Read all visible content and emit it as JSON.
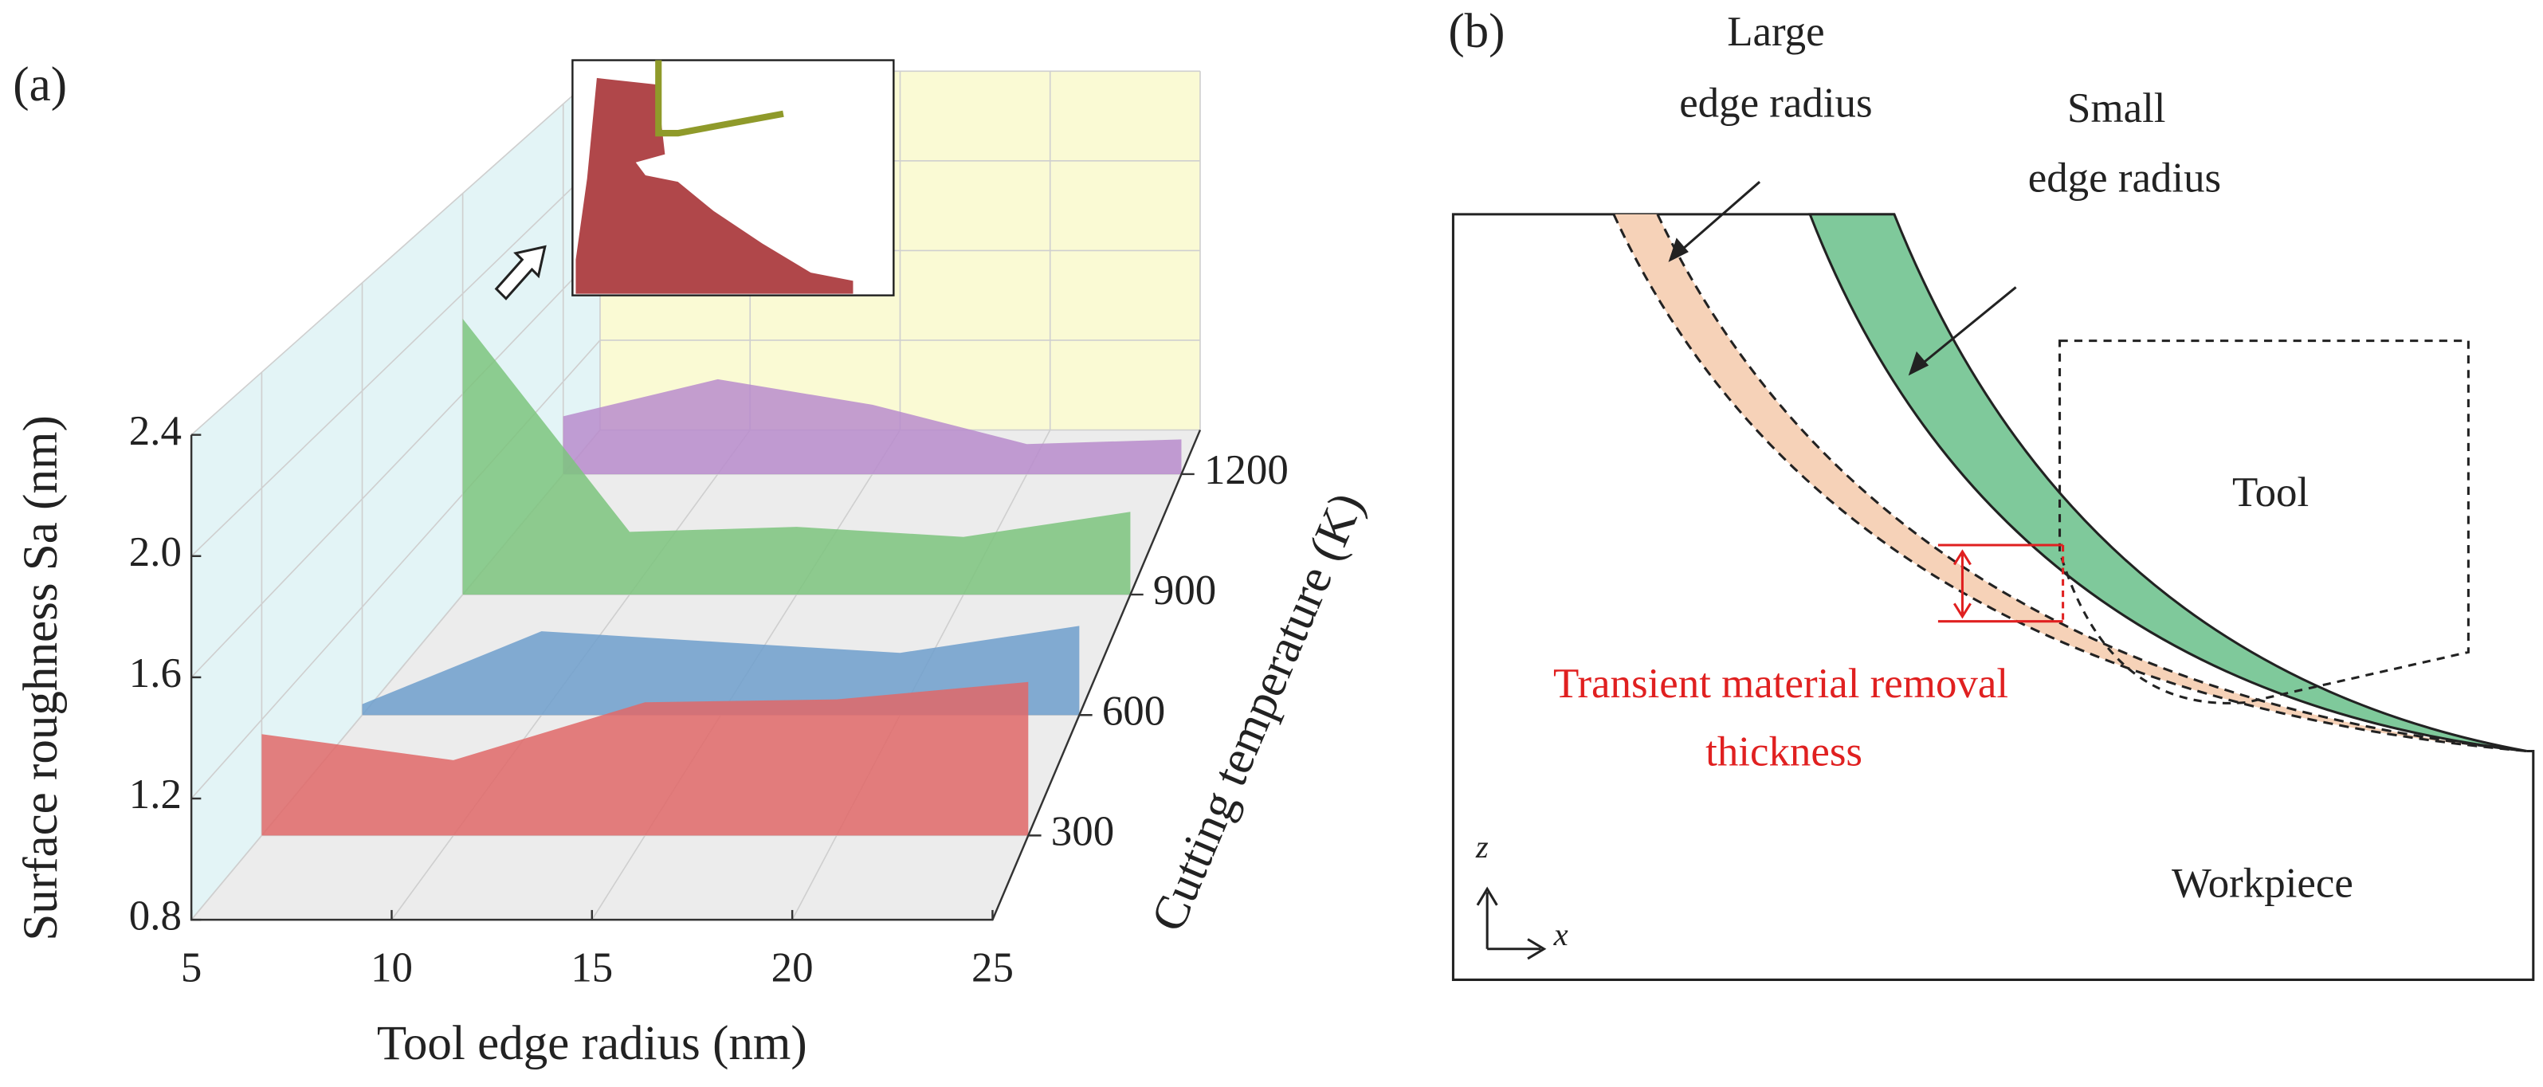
{
  "panels": [
    "(a)",
    "(b)"
  ],
  "chart_data": {
    "type": "waterfall3d",
    "x_label": "Tool edge radius (nm)",
    "y_label": "Surface roughness Sa (nm)",
    "z_label": "Cutting temperature (K)",
    "x": [
      5,
      10,
      15,
      20,
      25
    ],
    "series": [
      {
        "z": 300,
        "color": "#e06868",
        "values": [
          1.15,
          1.06,
          1.26,
          1.27,
          1.33
        ]
      },
      {
        "z": 600,
        "color": "#6f9fcc",
        "values": [
          0.84,
          1.11,
          1.07,
          1.03,
          1.13
        ]
      },
      {
        "z": 900,
        "color": "#7cc47e",
        "values": [
          1.9,
          1.05,
          1.07,
          1.03,
          1.13
        ]
      },
      {
        "z": 1200,
        "color": "#b88ccc",
        "values": [
          1.05,
          1.21,
          1.1,
          0.93,
          0.95
        ]
      }
    ],
    "xlim": [
      5,
      25
    ],
    "xticks": [
      5,
      10,
      15,
      20,
      25
    ],
    "ylim": [
      0.8,
      2.4
    ],
    "yticks": [
      0.8,
      1.2,
      1.6,
      {
        "value": 2,
        "label": "2.0"
      },
      2.4
    ],
    "zlim": [
      90,
      1310
    ],
    "zticks": [
      300,
      600,
      900,
      1200
    ],
    "grid": true
  },
  "diagram": {
    "large_radius": [
      "Large",
      "edge radius"
    ],
    "small_radius": [
      "Small",
      "edge radius"
    ],
    "tool": "Tool",
    "removal": [
      "Transient material removal",
      "thickness"
    ],
    "workpiece": "Workpiece",
    "z_axis": "z",
    "x_axis": "x"
  }
}
